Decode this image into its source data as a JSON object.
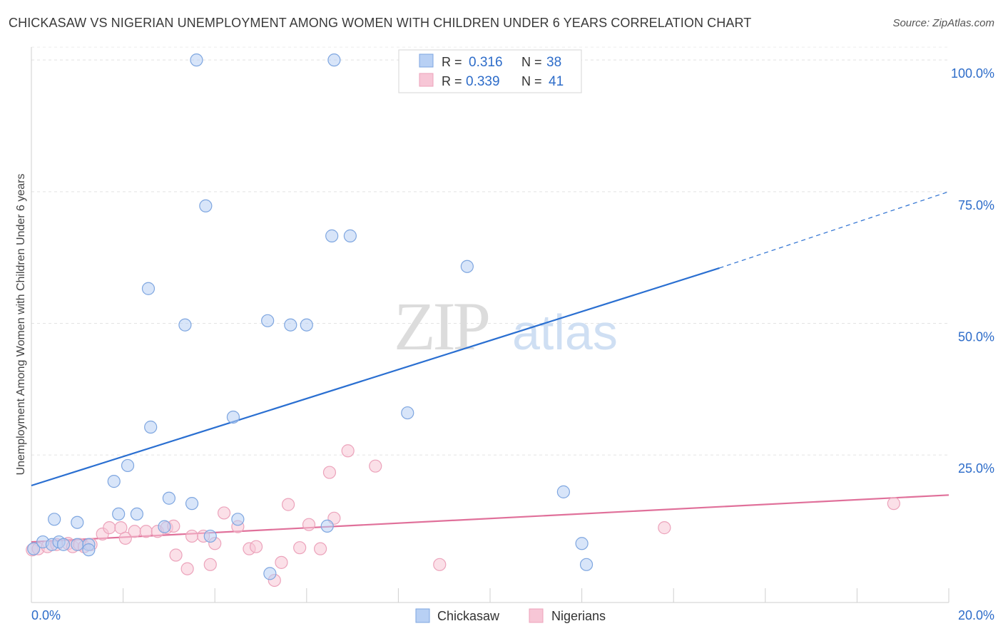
{
  "header": {
    "title": "CHICKASAW VS NIGERIAN UNEMPLOYMENT AMONG WOMEN WITH CHILDREN UNDER 6 YEARS CORRELATION CHART",
    "source": "Source: ZipAtlas.com"
  },
  "watermark": {
    "zip": "ZIP",
    "atlas": "atlas"
  },
  "colors": {
    "chickasaw_fill": "#b8d0f4",
    "chickasaw_stroke": "#7ea6e0",
    "chickasaw_line": "#2a6fd1",
    "nigerians_fill": "#f7c6d6",
    "nigerians_stroke": "#eca3bb",
    "nigerians_line": "#e0709a",
    "accent_text": "#2d6cc9"
  },
  "legend_box": {
    "rows": [
      {
        "r_label": "R =",
        "r_value": "0.316",
        "n_label": "N =",
        "n_value": "38"
      },
      {
        "r_label": "R =",
        "r_value": "0.339",
        "n_label": "N =",
        "n_value": "41"
      }
    ]
  },
  "chart_data": {
    "type": "scatter",
    "title": "CHICKASAW VS NIGERIAN UNEMPLOYMENT AMONG WOMEN WITH CHILDREN UNDER 6 YEARS CORRELATION CHART",
    "xlabel": "",
    "ylabel": "Unemployment Among Women with Children Under 6 years",
    "xlim": [
      0,
      20
    ],
    "ylim": [
      -3,
      103
    ],
    "x_tick_labels": [
      "0.0%",
      "20.0%"
    ],
    "y_tick_labels": [
      "100.0%",
      "75.0%",
      "50.0%",
      "25.0%"
    ],
    "y_ticks": [
      100,
      75,
      50,
      25
    ],
    "grid": true,
    "legend": "bottom-center",
    "series": [
      {
        "name": "Chickasaw",
        "r": 0.316,
        "n": 38,
        "trend": {
          "x": [
            0,
            15
          ],
          "y": [
            19.2,
            60.5
          ],
          "dashed_to": [
            20,
            75
          ]
        },
        "points": [
          [
            0.05,
            7.2
          ],
          [
            0.25,
            8.5
          ],
          [
            0.45,
            8.0
          ],
          [
            0.6,
            8.5
          ],
          [
            0.7,
            8.0
          ],
          [
            0.5,
            12.8
          ],
          [
            1.0,
            8.0
          ],
          [
            1.25,
            8.0
          ],
          [
            1.25,
            7.0
          ],
          [
            1.0,
            12.2
          ],
          [
            1.9,
            13.8
          ],
          [
            2.3,
            13.8
          ],
          [
            1.8,
            20.0
          ],
          [
            2.1,
            23.0
          ],
          [
            2.6,
            30.3
          ],
          [
            3.0,
            16.8
          ],
          [
            2.9,
            11.4
          ],
          [
            3.5,
            15.8
          ],
          [
            3.9,
            9.6
          ],
          [
            4.5,
            12.8
          ],
          [
            4.4,
            32.2
          ],
          [
            2.55,
            56.6
          ],
          [
            3.35,
            49.7
          ],
          [
            3.8,
            72.3
          ],
          [
            5.15,
            50.5
          ],
          [
            5.65,
            49.7
          ],
          [
            6.0,
            49.7
          ],
          [
            6.55,
            66.6
          ],
          [
            6.95,
            66.6
          ],
          [
            9.5,
            60.8
          ],
          [
            8.2,
            33.0
          ],
          [
            3.6,
            100.0
          ],
          [
            6.6,
            100.0
          ],
          [
            5.2,
            2.5
          ],
          [
            11.6,
            18.0
          ],
          [
            12.0,
            8.2
          ],
          [
            12.1,
            4.2
          ],
          [
            6.45,
            11.5
          ]
        ]
      },
      {
        "name": "Nigerians",
        "r": 0.339,
        "n": 41,
        "trend": {
          "x": [
            0,
            20
          ],
          "y": [
            8.5,
            17.4
          ]
        },
        "points": [
          [
            0.02,
            7.0
          ],
          [
            0.15,
            7.2
          ],
          [
            0.35,
            7.6
          ],
          [
            0.55,
            8.0
          ],
          [
            0.8,
            8.2
          ],
          [
            0.9,
            7.6
          ],
          [
            1.05,
            8.0
          ],
          [
            1.15,
            7.6
          ],
          [
            1.3,
            8.0
          ],
          [
            1.55,
            10.0
          ],
          [
            1.7,
            11.2
          ],
          [
            1.95,
            11.2
          ],
          [
            2.05,
            9.2
          ],
          [
            2.25,
            10.5
          ],
          [
            2.5,
            10.5
          ],
          [
            2.75,
            10.5
          ],
          [
            2.95,
            11.2
          ],
          [
            3.1,
            11.5
          ],
          [
            3.15,
            6.0
          ],
          [
            3.4,
            3.4
          ],
          [
            3.5,
            9.6
          ],
          [
            3.75,
            9.6
          ],
          [
            3.9,
            4.2
          ],
          [
            4.0,
            8.2
          ],
          [
            4.2,
            14.0
          ],
          [
            4.5,
            11.4
          ],
          [
            4.75,
            7.2
          ],
          [
            4.9,
            7.6
          ],
          [
            5.45,
            4.6
          ],
          [
            5.6,
            15.6
          ],
          [
            5.3,
            1.2
          ],
          [
            5.85,
            7.4
          ],
          [
            6.05,
            11.8
          ],
          [
            6.3,
            7.2
          ],
          [
            6.5,
            21.7
          ],
          [
            6.6,
            13.0
          ],
          [
            6.9,
            25.8
          ],
          [
            7.5,
            22.9
          ],
          [
            8.9,
            4.2
          ],
          [
            13.8,
            11.2
          ],
          [
            18.8,
            15.8
          ]
        ]
      }
    ]
  }
}
